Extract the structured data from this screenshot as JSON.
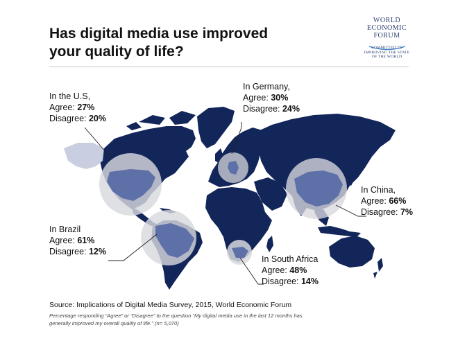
{
  "title": {
    "line1": "Has digital media use improved",
    "line2": "your quality of life?"
  },
  "logo": {
    "line1": "WORLD",
    "line2": "ECONOMIC",
    "line3": "FORUM",
    "tagline1": "COMMITTED TO",
    "tagline2": "IMPROVING THE STATE",
    "tagline3": "OF THE WORLD"
  },
  "colors": {
    "land": "#13265a",
    "highlight": "#d8d9de",
    "highlight_land": "#5d70a8",
    "leader_line": "#222222"
  },
  "countries": {
    "us": {
      "label": "In the U.S,",
      "agree_label": "Agree:",
      "agree": "27%",
      "disagree_label": "Disagree:",
      "disagree": "20%"
    },
    "germany": {
      "label": "In Germany,",
      "agree_label": "Agree:",
      "agree": "30%",
      "disagree_label": "Disagree:",
      "disagree": "24%"
    },
    "china": {
      "label": "In China,",
      "agree_label": "Agree:",
      "agree": "66%",
      "disagree_label": "Disagree:",
      "disagree": "7%"
    },
    "brazil": {
      "label": "In Brazil",
      "agree_label": "Agree:",
      "agree": "61%",
      "disagree_label": "Disagree:",
      "disagree": "12%"
    },
    "south_africa": {
      "label": "In South Africa",
      "agree_label": "Agree:",
      "agree": "48%",
      "disagree_label": "Disagree:",
      "disagree": "14%"
    }
  },
  "source": "Source:  Implications of Digital Media Survey, 2015, World Economic Forum",
  "note": "Percentage responding “Agree” or “Disagree” to the question “My digital media use in the last 12 months has generally improved my overall quality of life.” (n= 5,070)"
}
